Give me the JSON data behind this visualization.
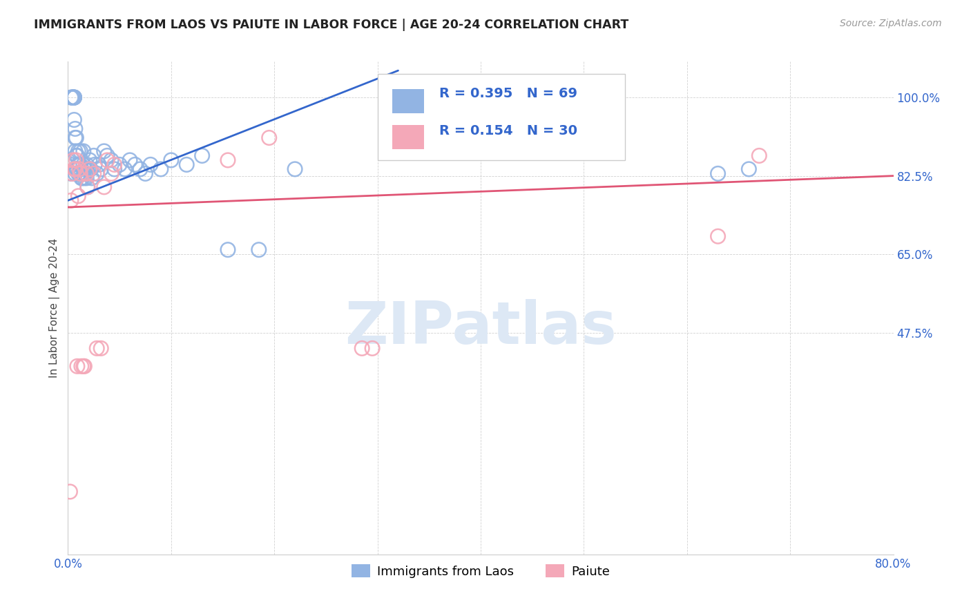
{
  "title": "IMMIGRANTS FROM LAOS VS PAIUTE IN LABOR FORCE | AGE 20-24 CORRELATION CHART",
  "source": "Source: ZipAtlas.com",
  "ylabel": "In Labor Force | Age 20-24",
  "xlim": [
    0.0,
    0.8
  ],
  "ylim": [
    -0.02,
    1.08
  ],
  "laos_R": 0.395,
  "laos_N": 69,
  "paiute_R": 0.154,
  "paiute_N": 30,
  "laos_color": "#92b4e3",
  "paiute_color": "#f4a8b8",
  "laos_line_color": "#3366cc",
  "paiute_line_color": "#e05575",
  "stat_text_color": "#3366cc",
  "ytick_vals": [
    0.475,
    0.65,
    0.825,
    1.0
  ],
  "ytick_labels": [
    "47.5%",
    "65.0%",
    "82.5%",
    "100.0%"
  ],
  "xtick_vals": [
    0.0,
    0.1,
    0.2,
    0.3,
    0.4,
    0.5,
    0.6,
    0.7,
    0.8
  ],
  "xtick_labels": [
    "0.0%",
    "",
    "",
    "",
    "",
    "",
    "",
    "",
    "80.0%"
  ],
  "laos_x": [
    0.003,
    0.003,
    0.004,
    0.004,
    0.005,
    0.005,
    0.005,
    0.006,
    0.006,
    0.006,
    0.006,
    0.006,
    0.007,
    0.007,
    0.007,
    0.007,
    0.007,
    0.008,
    0.008,
    0.008,
    0.009,
    0.009,
    0.01,
    0.01,
    0.01,
    0.011,
    0.011,
    0.012,
    0.012,
    0.013,
    0.013,
    0.014,
    0.015,
    0.015,
    0.016,
    0.016,
    0.017,
    0.018,
    0.018,
    0.019,
    0.02,
    0.021,
    0.022,
    0.023,
    0.025,
    0.026,
    0.028,
    0.03,
    0.032,
    0.035,
    0.038,
    0.042,
    0.045,
    0.05,
    0.055,
    0.06,
    0.065,
    0.07,
    0.075,
    0.08,
    0.09,
    0.1,
    0.115,
    0.13,
    0.155,
    0.185,
    0.22,
    0.63,
    0.66
  ],
  "laos_y": [
    0.83,
    1.0,
    1.0,
    1.0,
    1.0,
    1.0,
    1.0,
    1.0,
    1.0,
    1.0,
    1.0,
    0.95,
    0.93,
    0.91,
    0.88,
    0.84,
    0.83,
    0.91,
    0.87,
    0.84,
    0.87,
    0.84,
    0.88,
    0.85,
    0.83,
    0.85,
    0.83,
    0.88,
    0.85,
    0.83,
    0.82,
    0.82,
    0.88,
    0.85,
    0.84,
    0.82,
    0.83,
    0.85,
    0.82,
    0.8,
    0.84,
    0.86,
    0.84,
    0.82,
    0.87,
    0.85,
    0.83,
    0.85,
    0.84,
    0.88,
    0.87,
    0.86,
    0.84,
    0.85,
    0.84,
    0.86,
    0.85,
    0.84,
    0.83,
    0.85,
    0.84,
    0.86,
    0.85,
    0.87,
    0.66,
    0.66,
    0.84,
    0.83,
    0.84
  ],
  "paiute_x": [
    0.002,
    0.003,
    0.004,
    0.005,
    0.006,
    0.007,
    0.008,
    0.009,
    0.01,
    0.011,
    0.012,
    0.013,
    0.015,
    0.016,
    0.018,
    0.019,
    0.021,
    0.025,
    0.028,
    0.032,
    0.035,
    0.038,
    0.042,
    0.045,
    0.155,
    0.195,
    0.285,
    0.295,
    0.63,
    0.67
  ],
  "paiute_y": [
    0.12,
    0.77,
    0.83,
    0.86,
    0.84,
    0.84,
    0.86,
    0.4,
    0.78,
    0.84,
    0.83,
    0.4,
    0.4,
    0.4,
    0.83,
    0.8,
    0.84,
    0.83,
    0.44,
    0.44,
    0.8,
    0.86,
    0.83,
    0.85,
    0.86,
    0.91,
    0.44,
    0.44,
    0.69,
    0.87
  ],
  "laos_line_x": [
    0.0,
    0.32
  ],
  "laos_line_y": [
    0.77,
    1.06
  ],
  "paiute_line_x": [
    0.0,
    0.8
  ],
  "paiute_line_y": [
    0.755,
    0.825
  ],
  "watermark_text": "ZIPatlas",
  "watermark_color": "#dde8f5"
}
